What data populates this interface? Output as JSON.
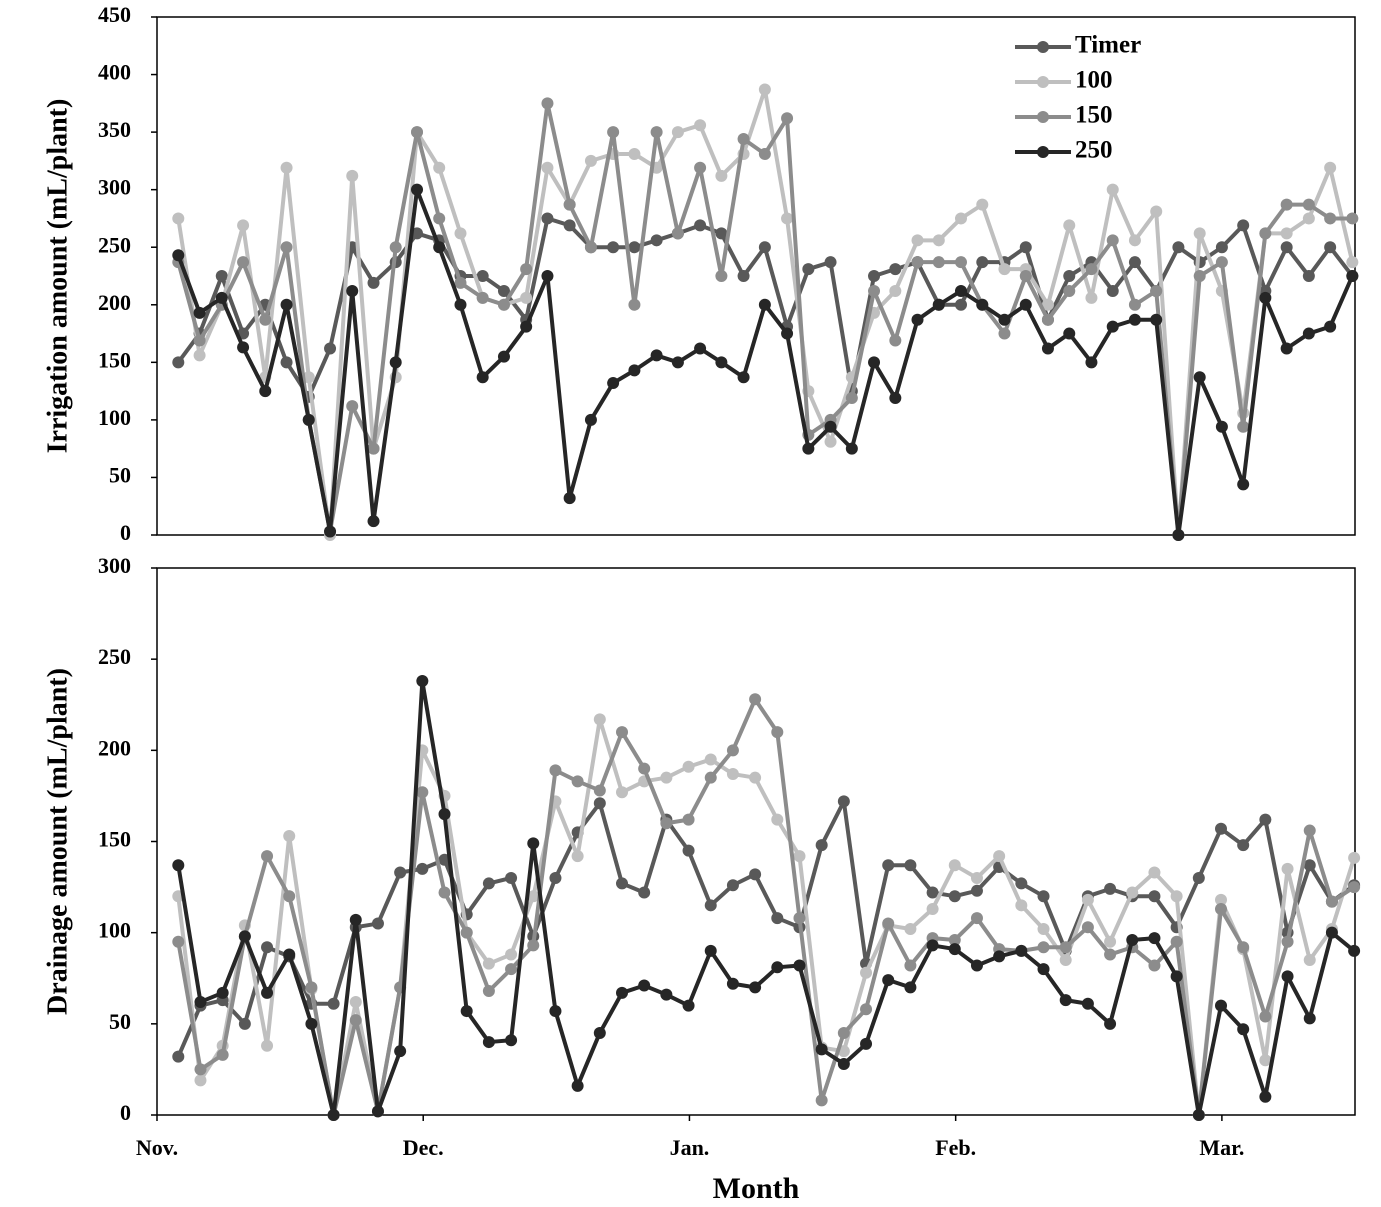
{
  "chart_data": [
    {
      "type": "line",
      "ylabel": "Irrigation amount (mL/plant)",
      "xlim": [
        0,
        135
      ],
      "ylim": [
        0,
        450
      ],
      "yticks": [
        0,
        50,
        100,
        150,
        200,
        250,
        300,
        350,
        400,
        450
      ],
      "legend": "upper right",
      "x": [
        2.4,
        4.8,
        7.3,
        9.7,
        12.2,
        14.6,
        17.1,
        19.5,
        22.0,
        24.4,
        26.9,
        29.3,
        31.8,
        34.2,
        36.7,
        39.1,
        41.6,
        44.0,
        46.5,
        48.9,
        51.4,
        53.8,
        56.3,
        58.7,
        61.2,
        63.6,
        66.1,
        68.5,
        71.0,
        73.4,
        75.9,
        78.3,
        80.8,
        83.2,
        85.7,
        88.1,
        90.6,
        93.0,
        95.5,
        97.9,
        100.4,
        102.8,
        105.3,
        107.7,
        110.2,
        112.6,
        115.1,
        117.5,
        120.0,
        122.4,
        124.9,
        127.3,
        129.8,
        132.2,
        134.7
      ],
      "series": [
        {
          "name": "Timer",
          "color": "#595959",
          "values": [
            150,
            175,
            225,
            175,
            200,
            150,
            120,
            162,
            250,
            219,
            237,
            262,
            256,
            225,
            225,
            212,
            187,
            275,
            269,
            250,
            250,
            250,
            256,
            262,
            269,
            262,
            225,
            250,
            181,
            231,
            237,
            125,
            225,
            231,
            237,
            200,
            200,
            237,
            237,
            250,
            187,
            225,
            237,
            212,
            237,
            212,
            250,
            237,
            250,
            269,
            212,
            250,
            225,
            250,
            225
          ]
        },
        {
          "name": "100",
          "color": "#bfbfbf",
          "values": [
            275,
            156,
            200,
            269,
            137,
            319,
            137,
            0,
            312,
            75,
            137,
            350,
            319,
            262,
            206,
            200,
            206,
            319,
            287,
            325,
            331,
            331,
            319,
            350,
            356,
            312,
            331,
            387,
            275,
            125,
            81,
            137,
            193,
            212,
            256,
            256,
            275,
            287,
            231,
            231,
            200,
            269,
            206,
            300,
            256,
            281,
            0,
            262,
            212,
            106,
            262,
            262,
            275,
            319,
            237
          ]
        },
        {
          "name": "150",
          "color": "#8c8c8c",
          "values": [
            237,
            169,
            200,
            237,
            187,
            250,
            100,
            3,
            112,
            75,
            250,
            350,
            275,
            219,
            206,
            200,
            231,
            375,
            287,
            250,
            350,
            200,
            350,
            262,
            319,
            225,
            344,
            331,
            362,
            87,
            100,
            119,
            212,
            169,
            237,
            237,
            237,
            200,
            175,
            225,
            187,
            212,
            231,
            256,
            200,
            212,
            0,
            225,
            237,
            94,
            262,
            287,
            287,
            275,
            275
          ]
        },
        {
          "name": "250",
          "color": "#262626",
          "values": [
            243,
            193,
            206,
            163,
            125,
            200,
            100,
            3,
            212,
            12,
            150,
            300,
            250,
            200,
            137,
            155,
            181,
            225,
            32,
            100,
            132,
            143,
            156,
            150,
            162,
            150,
            137,
            200,
            175,
            75,
            94,
            75,
            150,
            119,
            187,
            200,
            212,
            200,
            187,
            200,
            162,
            175,
            150,
            181,
            187,
            187,
            0,
            137,
            94,
            44,
            206,
            162,
            175,
            181,
            225
          ]
        }
      ]
    },
    {
      "type": "line",
      "ylabel": "Drainage amount (mL/plant)",
      "xlabel": "Month",
      "xlim": [
        0,
        135
      ],
      "ylim": [
        0,
        300
      ],
      "yticks": [
        0,
        50,
        100,
        150,
        200,
        250,
        300
      ],
      "xticks": [
        {
          "value": 0,
          "label": "Nov."
        },
        {
          "value": 30,
          "label": "Dec."
        },
        {
          "value": 60,
          "label": "Jan."
        },
        {
          "value": 90,
          "label": "Feb."
        },
        {
          "value": 120,
          "label": "Mar."
        }
      ],
      "x": [
        2.4,
        4.9,
        7.4,
        9.9,
        12.4,
        14.9,
        17.4,
        19.9,
        22.4,
        24.9,
        27.4,
        29.9,
        32.4,
        34.9,
        37.4,
        39.9,
        42.4,
        44.9,
        47.4,
        49.9,
        52.4,
        54.9,
        57.4,
        59.9,
        62.4,
        64.9,
        67.4,
        69.9,
        72.4,
        74.9,
        77.4,
        79.9,
        82.4,
        84.9,
        87.4,
        89.9,
        92.4,
        94.9,
        97.4,
        99.9,
        102.4,
        104.9,
        107.4,
        109.9,
        112.4,
        114.9,
        117.4,
        119.9,
        122.4,
        124.9,
        127.4,
        129.9,
        132.4,
        134.9
      ],
      "series": [
        {
          "name": "Timer",
          "color": "#595959",
          "values": [
            32,
            60,
            63,
            50,
            92,
            87,
            61,
            61,
            103,
            105,
            133,
            135,
            140,
            110,
            127,
            130,
            98,
            130,
            155,
            171,
            127,
            122,
            162,
            145,
            115,
            126,
            132,
            108,
            103,
            148,
            172,
            83,
            137,
            137,
            122,
            120,
            123,
            136,
            127,
            120,
            90,
            120,
            124,
            120,
            120,
            103,
            130,
            157,
            148,
            162,
            100,
            137,
            117,
            126
          ]
        },
        {
          "name": "100",
          "color": "#bfbfbf",
          "values": [
            120,
            19,
            38,
            104,
            38,
            153,
            69,
            0,
            62,
            2,
            70,
            200,
            175,
            100,
            83,
            88,
            120,
            172,
            142,
            217,
            177,
            183,
            185,
            191,
            195,
            187,
            185,
            162,
            142,
            37,
            35,
            78,
            104,
            102,
            113,
            137,
            130,
            142,
            115,
            102,
            85,
            118,
            95,
            122,
            133,
            120,
            0,
            118,
            91,
            30,
            135,
            85,
            102,
            141
          ]
        },
        {
          "name": "150",
          "color": "#8c8c8c",
          "values": [
            95,
            25,
            33,
            98,
            142,
            120,
            70,
            0,
            52,
            2,
            70,
            177,
            122,
            100,
            68,
            80,
            93,
            189,
            183,
            178,
            210,
            190,
            160,
            162,
            185,
            200,
            228,
            210,
            108,
            8,
            45,
            58,
            105,
            82,
            97,
            96,
            108,
            91,
            90,
            92,
            92,
            103,
            88,
            92,
            82,
            95,
            0,
            113,
            92,
            54,
            95,
            156,
            117,
            125
          ]
        },
        {
          "name": "250",
          "color": "#262626",
          "values": [
            137,
            62,
            67,
            98,
            67,
            88,
            50,
            0,
            107,
            2,
            35,
            238,
            165,
            57,
            40,
            41,
            149,
            57,
            16,
            45,
            67,
            71,
            66,
            60,
            90,
            72,
            70,
            81,
            82,
            36,
            28,
            39,
            74,
            70,
            93,
            91,
            82,
            87,
            90,
            80,
            63,
            61,
            50,
            96,
            97,
            76,
            0,
            60,
            47,
            10,
            76,
            53,
            100,
            90
          ]
        }
      ]
    }
  ]
}
